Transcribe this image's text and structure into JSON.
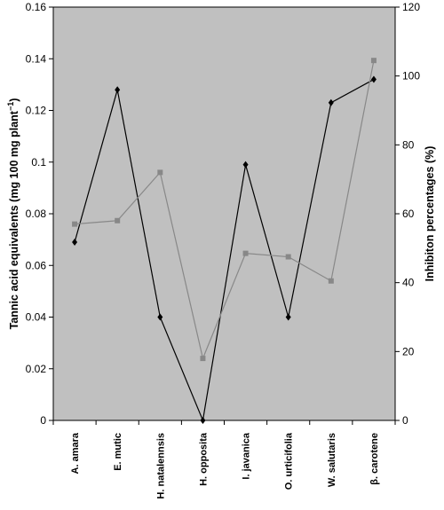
{
  "chart_data": {
    "type": "line",
    "categories": [
      "A. amara",
      "E. mutic",
      "H. natalennsis",
      "H. opposita",
      "I. javanica",
      "O. urticifolia",
      "W. salutaris",
      "β. carotene"
    ],
    "series": [
      {
        "axis": "left",
        "color": "#000000",
        "marker": "diamond",
        "values": [
          0.069,
          0.128,
          0.04,
          0.0,
          0.099,
          0.04,
          0.123,
          0.132
        ]
      },
      {
        "axis": "right",
        "color": "#888888",
        "marker": "square",
        "values": [
          57,
          58,
          72,
          18,
          48.5,
          47.5,
          40.5,
          104.5
        ]
      }
    ],
    "ylabel": "Tannic acid equivalents (mg 100 mg plant",
    "ylabel_superscript": "−1",
    "ylabel_suffix": ")",
    "y2label": "Inhibiton percentages (%)",
    "ylim": [
      0,
      0.16
    ],
    "y2lim": [
      0,
      120
    ],
    "yticks": [
      "0",
      "0.02",
      "0.04",
      "0.06",
      "0.08",
      "0.1",
      "0.12",
      "0.14",
      "0.16"
    ],
    "y2ticks": [
      "0",
      "20",
      "40",
      "60",
      "80",
      "100",
      "120"
    ],
    "plot_background": "#c0c0c0",
    "grid": false,
    "legend": "none"
  }
}
